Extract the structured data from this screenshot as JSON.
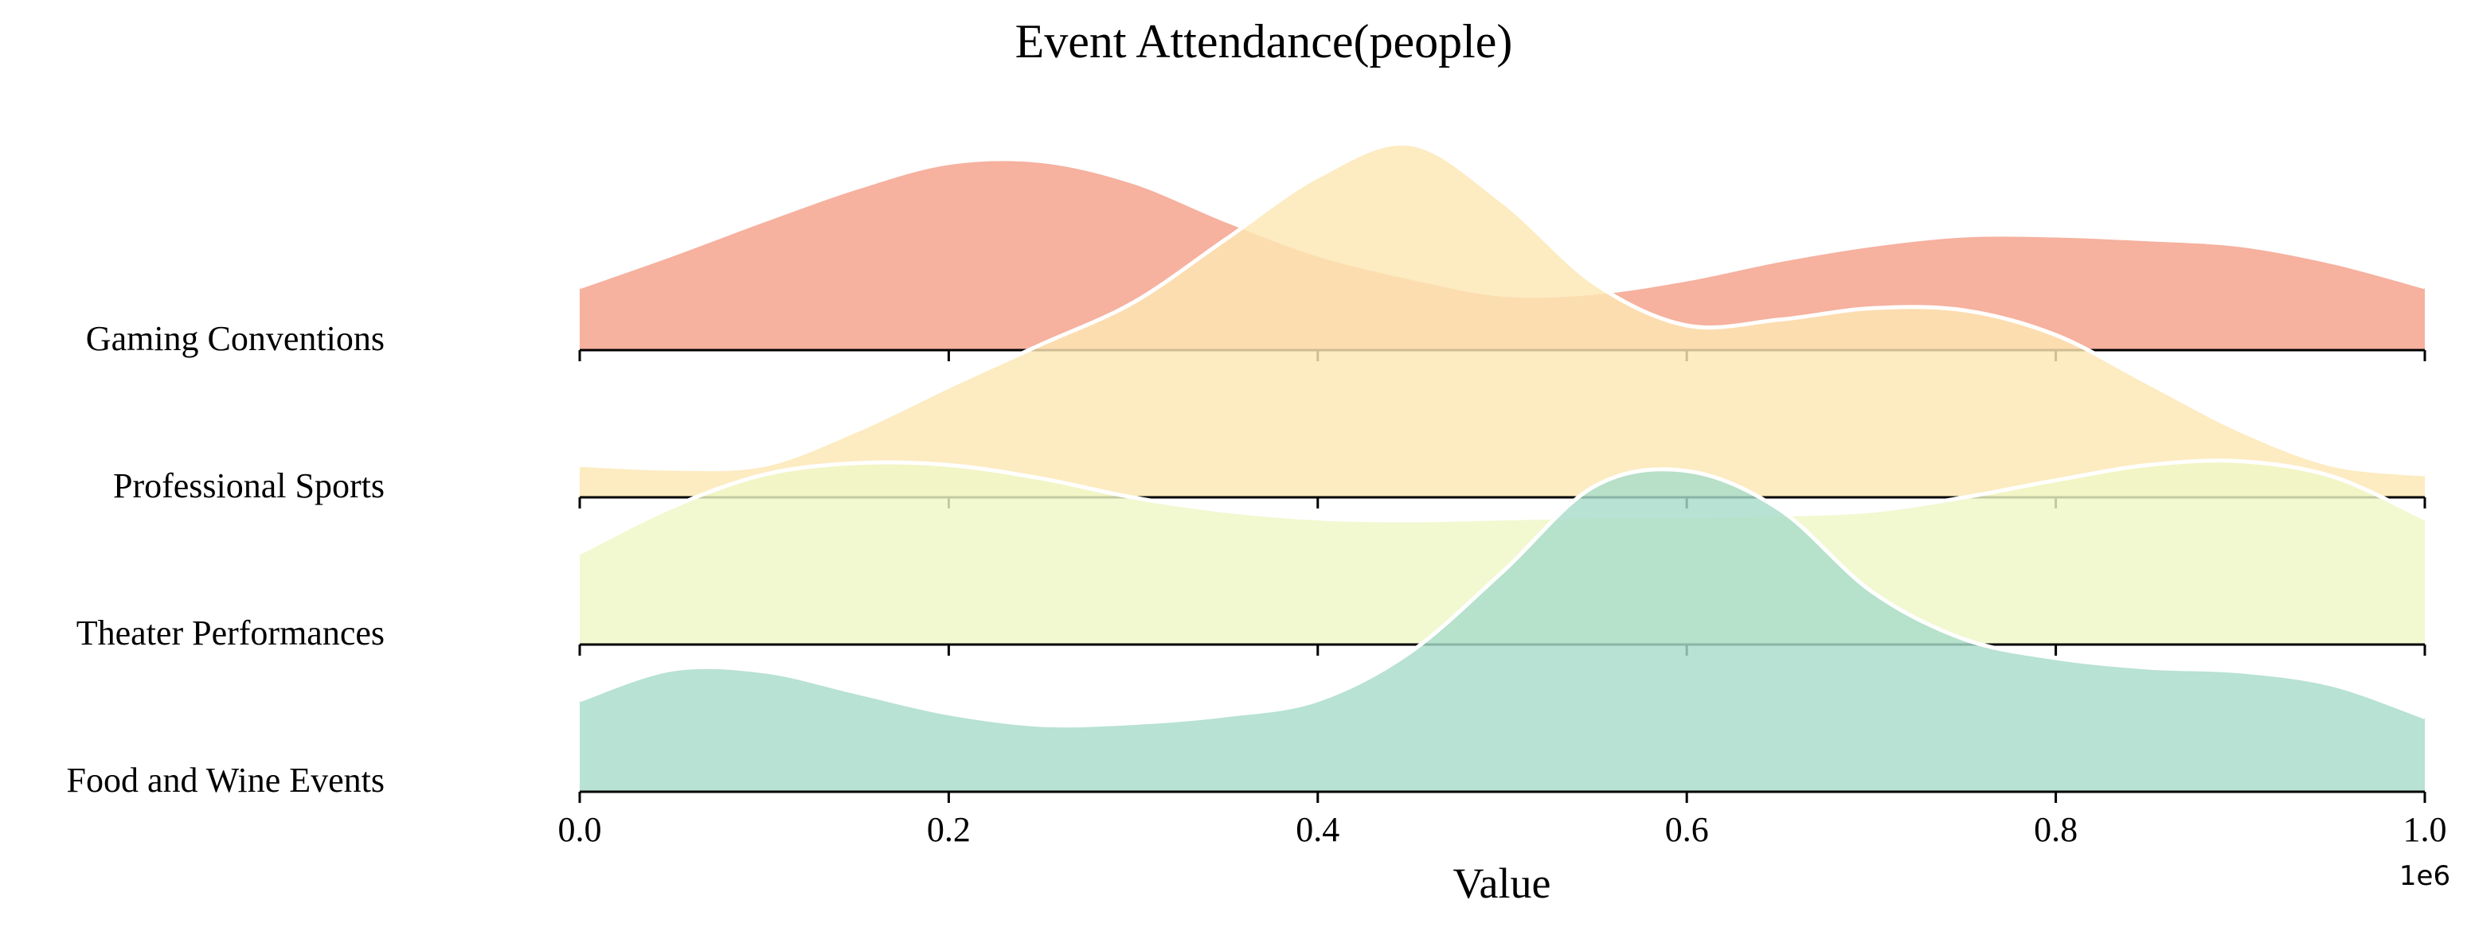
{
  "chart_data": {
    "type": "ridgeline",
    "title": "Event Attendance(people)",
    "xlabel": "Value",
    "x_offset_label": "1e6",
    "xlim": [
      0,
      1
    ],
    "xticks": [
      "0.0",
      "0.2",
      "0.4",
      "0.6",
      "0.8",
      "1.0"
    ],
    "x_tick_values": [
      0,
      0.2,
      0.4,
      0.6,
      0.8,
      1.0
    ],
    "grid": false,
    "rows": [
      {
        "label": "Gaming Conventions",
        "color": "#f4a08a",
        "x": [
          0,
          0.05,
          0.1,
          0.15,
          0.2,
          0.25,
          0.3,
          0.35,
          0.4,
          0.45,
          0.5,
          0.55,
          0.6,
          0.65,
          0.7,
          0.75,
          0.8,
          0.85,
          0.9,
          0.95,
          1.0
        ],
        "density": [
          0.33,
          0.5,
          0.68,
          0.85,
          0.98,
          0.99,
          0.88,
          0.68,
          0.5,
          0.38,
          0.29,
          0.3,
          0.37,
          0.47,
          0.55,
          0.6,
          0.6,
          0.58,
          0.55,
          0.46,
          0.33
        ]
      },
      {
        "label": "Professional Sports",
        "color": "#fde6b3",
        "x": [
          0,
          0.05,
          0.1,
          0.15,
          0.2,
          0.25,
          0.3,
          0.35,
          0.4,
          0.45,
          0.5,
          0.55,
          0.6,
          0.65,
          0.7,
          0.75,
          0.8,
          0.85,
          0.9,
          0.95,
          1.0
        ],
        "density": [
          0.17,
          0.15,
          0.17,
          0.35,
          0.58,
          0.8,
          1.02,
          1.35,
          1.68,
          1.85,
          1.55,
          1.12,
          0.9,
          0.93,
          0.99,
          0.98,
          0.85,
          0.6,
          0.35,
          0.17,
          0.12
        ]
      },
      {
        "label": "Theater Performances",
        "color": "#eff7c6",
        "x": [
          0,
          0.05,
          0.1,
          0.15,
          0.2,
          0.25,
          0.3,
          0.35,
          0.4,
          0.45,
          0.5,
          0.55,
          0.6,
          0.65,
          0.7,
          0.75,
          0.8,
          0.85,
          0.9,
          0.95,
          1.0
        ],
        "density": [
          0.48,
          0.72,
          0.89,
          0.95,
          0.94,
          0.87,
          0.77,
          0.7,
          0.66,
          0.65,
          0.66,
          0.67,
          0.67,
          0.68,
          0.7,
          0.77,
          0.86,
          0.94,
          0.96,
          0.88,
          0.66
        ]
      },
      {
        "label": "Food and Wine Events",
        "color": "#a8dcc9",
        "x": [
          0,
          0.05,
          0.1,
          0.15,
          0.2,
          0.25,
          0.3,
          0.35,
          0.4,
          0.45,
          0.5,
          0.55,
          0.6,
          0.65,
          0.7,
          0.75,
          0.8,
          0.85,
          0.9,
          0.95,
          1.0
        ],
        "density": [
          0.48,
          0.64,
          0.63,
          0.52,
          0.41,
          0.35,
          0.36,
          0.4,
          0.48,
          0.73,
          1.15,
          1.6,
          1.68,
          1.48,
          1.05,
          0.8,
          0.7,
          0.65,
          0.63,
          0.56,
          0.39
        ]
      }
    ]
  }
}
